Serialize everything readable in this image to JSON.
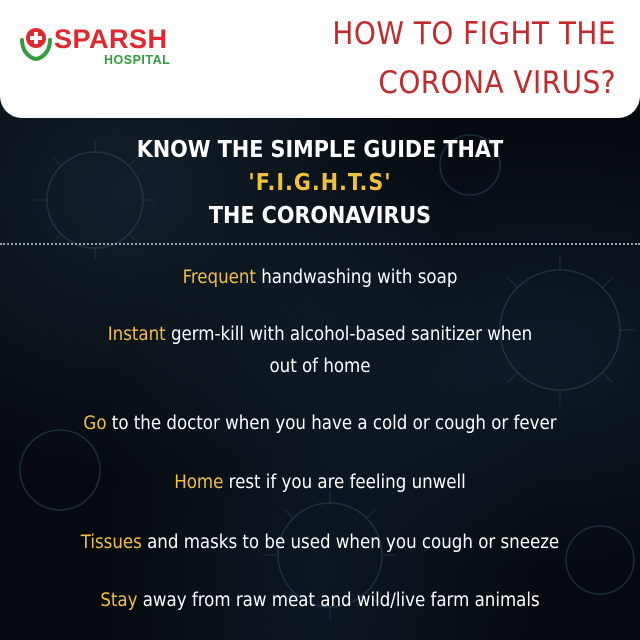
{
  "brand": {
    "name": "SPARSH",
    "subtitle": "HOSPITAL",
    "colors": {
      "red": "#e0282e",
      "green": "#2e9e3e"
    },
    "icon": "medical-cross-hands-icon"
  },
  "headline": {
    "line1": "HOW TO FIGHT THE",
    "line2": "CORONA VIRUS?",
    "color": "#c42a2c"
  },
  "intro": {
    "line1": "KNOW THE SIMPLE GUIDE THAT",
    "acronym": "'F.I.G.H.T.S'",
    "line3": "THE CORONAVIRUS"
  },
  "rules": [
    {
      "keyword": "Frequent",
      "text": " handwashing with soap",
      "continuation": ""
    },
    {
      "keyword": "Instant",
      "text": " germ-kill with alcohol-based sanitizer when",
      "continuation": "out of home"
    },
    {
      "keyword": "Go",
      "text": " to the doctor when you have a cold or cough or fever",
      "continuation": ""
    },
    {
      "keyword": "Home",
      "text": " rest if you are feeling unwell",
      "continuation": ""
    },
    {
      "keyword": "Tissues",
      "text": " and masks to be used when you cough or sneeze",
      "continuation": ""
    },
    {
      "keyword": "Stay",
      "text": " away from raw meat and wild/live farm animals",
      "continuation": ""
    }
  ],
  "colors": {
    "accent": "#f2c13c",
    "text": "#ffffff",
    "background": "#060a10"
  }
}
